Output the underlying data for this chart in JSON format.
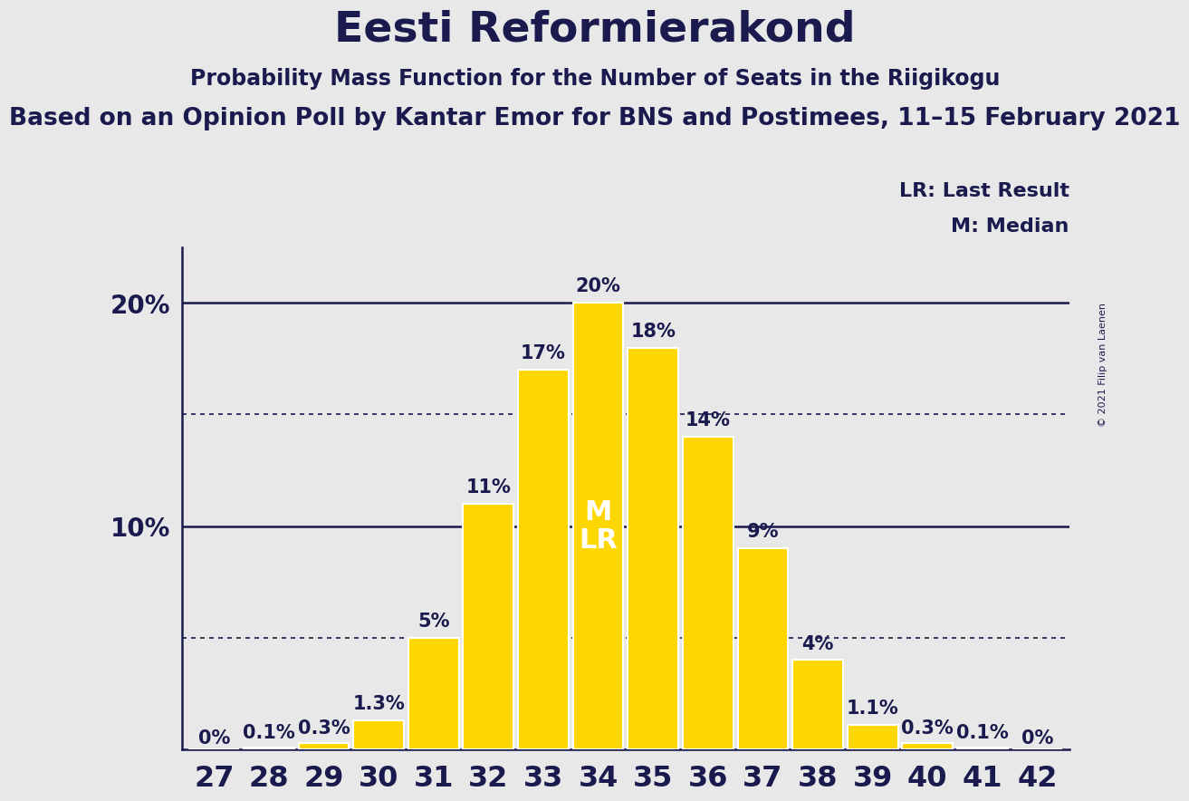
{
  "title": "Eesti Reformierakond",
  "subtitle1": "Probability Mass Function for the Number of Seats in the Riigikogu",
  "subtitle2": "Based on an Opinion Poll by Kantar Emor for BNS and Postimees, 11–15 February 2021",
  "copyright": "© 2021 Filip van Laenen",
  "legend_lr": "LR: Last Result",
  "legend_m": "M: Median",
  "seats": [
    27,
    28,
    29,
    30,
    31,
    32,
    33,
    34,
    35,
    36,
    37,
    38,
    39,
    40,
    41,
    42
  ],
  "probabilities": [
    0.0,
    0.1,
    0.3,
    1.3,
    5.0,
    11.0,
    17.0,
    20.0,
    18.0,
    14.0,
    9.0,
    4.0,
    1.1,
    0.3,
    0.1,
    0.0
  ],
  "labels": [
    "0%",
    "0.1%",
    "0.3%",
    "1.3%",
    "5%",
    "11%",
    "17%",
    "20%",
    "18%",
    "14%",
    "9%",
    "4%",
    "1.1%",
    "0.3%",
    "0.1%",
    "0%"
  ],
  "bar_color": "#FFD700",
  "bar_edge_color": "#FFFFFF",
  "median_seat": 34,
  "lr_seat": 34,
  "median_label": "M",
  "lr_label": "LR",
  "ylim": [
    0,
    22.5
  ],
  "dotted_lines": [
    5.0,
    15.0
  ],
  "solid_lines": [
    10.0,
    20.0
  ],
  "background_color": "#E8E8E8",
  "text_color": "#1a1a4e",
  "title_fontsize": 34,
  "subtitle1_fontsize": 17,
  "subtitle2_fontsize": 19,
  "xlabel_fontsize": 23,
  "ylabel_fontsize": 20,
  "bar_label_fontsize": 15,
  "legend_fontsize": 16,
  "annotation_fontsize": 22,
  "copyright_fontsize": 8
}
